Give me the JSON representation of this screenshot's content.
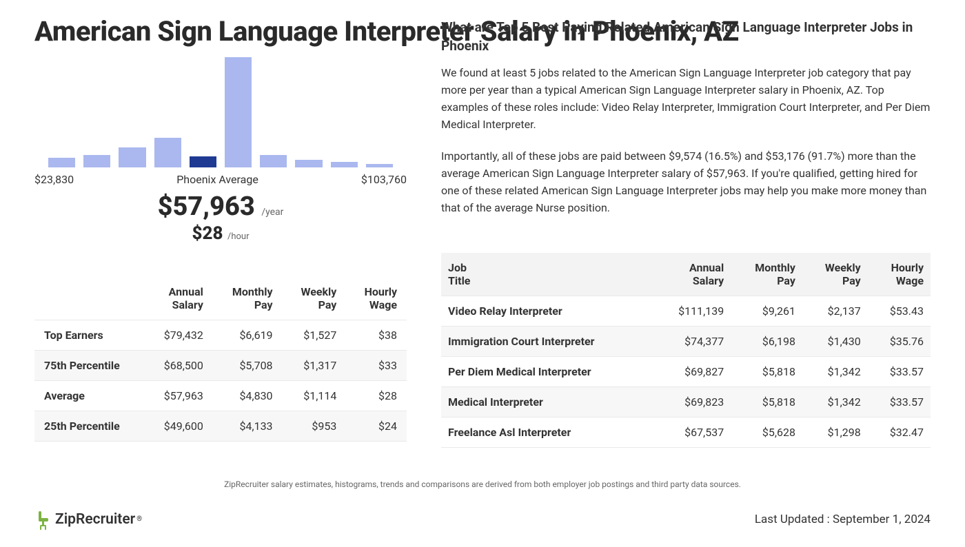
{
  "page_title": "American Sign Language Interpreter Salary in Phoenix, AZ",
  "chart": {
    "type": "histogram",
    "min_label": "$23,830",
    "mid_label": "Phoenix Average",
    "max_label": "$103,760",
    "bar_color": "#aab8ef",
    "highlight_color": "#1f3a93",
    "background_color": "#ffffff",
    "bar_heights_pct": [
      9,
      11,
      18,
      27,
      10,
      100,
      11,
      7,
      5,
      3
    ],
    "highlight_index": 4,
    "avg_year": "$57,963",
    "per_year": "/year",
    "avg_hour": "$28",
    "per_hour": "/hour"
  },
  "left_table": {
    "headers": [
      "",
      "Annual Salary",
      "Monthly Pay",
      "Weekly Pay",
      "Hourly Wage"
    ],
    "rows": [
      [
        "Top Earners",
        "$79,432",
        "$6,619",
        "$1,527",
        "$38"
      ],
      [
        "75th Percentile",
        "$68,500",
        "$5,708",
        "$1,317",
        "$33"
      ],
      [
        "Average",
        "$57,963",
        "$4,830",
        "$1,114",
        "$28"
      ],
      [
        "25th Percentile",
        "$49,600",
        "$4,133",
        "$953",
        "$24"
      ]
    ]
  },
  "right_section": {
    "title": "What are Top 5 Best Paying Related American Sign Language Interpreter Jobs in Phoenix",
    "para1": "We found at least 5 jobs related to the American Sign Language Interpreter job category that pay more per year than a typical American Sign Language Interpreter salary in Phoenix, AZ. Top examples of these roles include: Video Relay Interpreter, Immigration Court Interpreter, and Per Diem Medical Interpreter.",
    "para2": "Importantly, all of these jobs are paid between $9,574 (16.5%) and $53,176 (91.7%) more than the average American Sign Language Interpreter salary of $57,963. If you're qualified, getting hired for one of these related American Sign Language Interpreter jobs may help you make more money than that of the average Nurse position."
  },
  "right_table": {
    "headers": [
      "Job Title",
      "Annual Salary",
      "Monthly Pay",
      "Weekly Pay",
      "Hourly Wage"
    ],
    "rows": [
      [
        "Video Relay Interpreter",
        "$111,139",
        "$9,261",
        "$2,137",
        "$53.43"
      ],
      [
        "Immigration Court Interpreter",
        "$74,377",
        "$6,198",
        "$1,430",
        "$35.76"
      ],
      [
        "Per Diem Medical Interpreter",
        "$69,827",
        "$5,818",
        "$1,342",
        "$33.57"
      ],
      [
        "Medical Interpreter",
        "$69,823",
        "$5,818",
        "$1,342",
        "$33.57"
      ],
      [
        "Freelance Asl Interpreter",
        "$67,537",
        "$5,628",
        "$1,298",
        "$32.47"
      ]
    ]
  },
  "footnote": "ZipRecruiter salary estimates, histograms, trends and comparisons are derived from both employer job postings and third party data sources.",
  "brand": "ZipRecruiter",
  "brand_color": "#7cb342",
  "updated": "Last Updated : September 1, 2024"
}
